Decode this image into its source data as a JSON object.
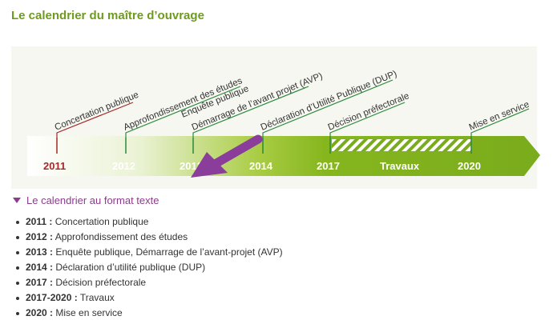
{
  "page": {
    "title": "Le calendrier du maître d’ouvrage"
  },
  "timeline": {
    "years": [
      "2011",
      "2012",
      "2013",
      "2014",
      "2017",
      "Travaux",
      "2020"
    ],
    "events": [
      "Concertation publique",
      "Approfondissement des études",
      "Enquête publique",
      "Démarrage de l’avant projet (AVP)",
      "Déclaration d’Utilité Publique (DUP)",
      "Décision préfectorale",
      "Mise en service"
    ],
    "colors": {
      "green": "#7aab1c",
      "dark_green": "#2a8a3c",
      "red": "#a52a2a",
      "purple": "#8a3d9a"
    }
  },
  "text_version": {
    "toggle_label": "Le calendrier au format texte",
    "toggle_icon": "triangle-down-icon",
    "items": [
      {
        "year": "2011 :",
        "text": " Concertation publique"
      },
      {
        "year": "2012 :",
        "text": " Approfondissement des études"
      },
      {
        "year": "2013 :",
        "text": " Enquête publique, Démarrage de l’avant-projet (AVP)"
      },
      {
        "year": "2014 :",
        "text": " Déclaration d’utilité publique (DUP)"
      },
      {
        "year": "2017 :",
        "text": " Décision préfectorale"
      },
      {
        "year": "2017-2020 :",
        "text": " Travaux"
      },
      {
        "year": "2020 :",
        "text": " Mise en service"
      }
    ]
  }
}
